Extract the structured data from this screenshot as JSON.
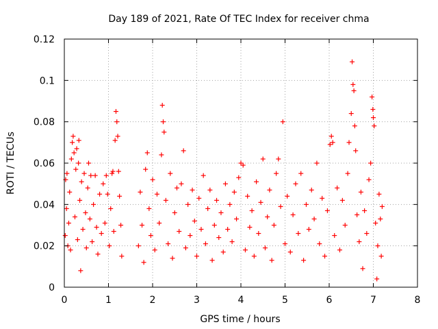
{
  "chart_data": {
    "type": "scatter",
    "title": "Day 189 of 2021, Rate Of TEC Index for receiver chma",
    "xlabel": "GPS time / hours",
    "ylabel": "ROTI / TECUs",
    "xlim": [
      0,
      8
    ],
    "ylim": [
      0,
      0.12
    ],
    "xticks": [
      "0",
      "1",
      "2",
      "3",
      "4",
      "5",
      "6",
      "7",
      "8"
    ],
    "yticks": [
      "0",
      "0.02",
      "0.04",
      "0.06",
      "0.08",
      "0.1",
      "0.12"
    ],
    "grid": true,
    "marker": "+",
    "color": "#ff0000",
    "series": [
      {
        "points": [
          [
            0.02,
            0.025
          ],
          [
            0.03,
            0.052
          ],
          [
            0.05,
            0.038
          ],
          [
            0.06,
            0.055
          ],
          [
            0.08,
            0.02
          ],
          [
            0.1,
            0.031
          ],
          [
            0.12,
            0.046
          ],
          [
            0.14,
            0.018
          ],
          [
            0.16,
            0.062
          ],
          [
            0.18,
            0.07
          ],
          [
            0.2,
            0.073
          ],
          [
            0.22,
            0.065
          ],
          [
            0.24,
            0.034
          ],
          [
            0.26,
            0.057
          ],
          [
            0.28,
            0.067
          ],
          [
            0.3,
            0.023
          ],
          [
            0.32,
            0.06
          ],
          [
            0.33,
            0.071
          ],
          [
            0.35,
            0.042
          ],
          [
            0.37,
            0.008
          ],
          [
            0.39,
            0.051
          ],
          [
            0.42,
            0.028
          ],
          [
            0.45,
            0.055
          ],
          [
            0.48,
            0.036
          ],
          [
            0.5,
            0.019
          ],
          [
            0.53,
            0.048
          ],
          [
            0.55,
            0.06
          ],
          [
            0.58,
            0.033
          ],
          [
            0.6,
            0.054
          ],
          [
            0.63,
            0.022
          ],
          [
            0.66,
            0.04
          ],
          [
            0.7,
            0.054
          ],
          [
            0.73,
            0.029
          ],
          [
            0.76,
            0.016
          ],
          [
            0.8,
            0.045
          ],
          [
            0.84,
            0.026
          ],
          [
            0.88,
            0.05
          ],
          [
            0.92,
            0.031
          ],
          [
            0.95,
            0.054
          ],
          [
            0.98,
            0.045
          ],
          [
            1.02,
            0.02
          ],
          [
            1.05,
            0.038
          ],
          [
            1.08,
            0.055
          ],
          [
            1.1,
            0.056
          ],
          [
            1.12,
            0.027
          ],
          [
            1.15,
            0.071
          ],
          [
            1.17,
            0.085
          ],
          [
            1.19,
            0.08
          ],
          [
            1.21,
            0.073
          ],
          [
            1.23,
            0.056
          ],
          [
            1.25,
            0.044
          ],
          [
            1.28,
            0.03
          ],
          [
            1.3,
            0.015
          ],
          [
            1.68,
            0.02
          ],
          [
            1.72,
            0.046
          ],
          [
            1.76,
            0.03
          ],
          [
            1.8,
            0.012
          ],
          [
            1.84,
            0.057
          ],
          [
            1.88,
            0.065
          ],
          [
            1.92,
            0.038
          ],
          [
            1.96,
            0.025
          ],
          [
            2.0,
            0.052
          ],
          [
            2.05,
            0.018
          ],
          [
            2.1,
            0.045
          ],
          [
            2.15,
            0.031
          ],
          [
            2.2,
            0.064
          ],
          [
            2.22,
            0.088
          ],
          [
            2.24,
            0.08
          ],
          [
            2.26,
            0.075
          ],
          [
            2.3,
            0.042
          ],
          [
            2.35,
            0.021
          ],
          [
            2.4,
            0.055
          ],
          [
            2.45,
            0.014
          ],
          [
            2.5,
            0.036
          ],
          [
            2.55,
            0.048
          ],
          [
            2.6,
            0.027
          ],
          [
            2.65,
            0.05
          ],
          [
            2.7,
            0.066
          ],
          [
            2.75,
            0.019
          ],
          [
            2.8,
            0.04
          ],
          [
            2.85,
            0.025
          ],
          [
            2.9,
            0.047
          ],
          [
            2.95,
            0.032
          ],
          [
            3.0,
            0.015
          ],
          [
            3.05,
            0.043
          ],
          [
            3.1,
            0.028
          ],
          [
            3.15,
            0.054
          ],
          [
            3.2,
            0.021
          ],
          [
            3.25,
            0.038
          ],
          [
            3.3,
            0.047
          ],
          [
            3.35,
            0.013
          ],
          [
            3.4,
            0.03
          ],
          [
            3.45,
            0.042
          ],
          [
            3.5,
            0.024
          ],
          [
            3.55,
            0.036
          ],
          [
            3.6,
            0.017
          ],
          [
            3.65,
            0.05
          ],
          [
            3.7,
            0.028
          ],
          [
            3.75,
            0.04
          ],
          [
            3.8,
            0.022
          ],
          [
            3.85,
            0.046
          ],
          [
            3.9,
            0.033
          ],
          [
            3.95,
            0.053
          ],
          [
            4.0,
            0.06
          ],
          [
            4.05,
            0.059
          ],
          [
            4.1,
            0.018
          ],
          [
            4.15,
            0.044
          ],
          [
            4.2,
            0.029
          ],
          [
            4.25,
            0.037
          ],
          [
            4.3,
            0.015
          ],
          [
            4.35,
            0.051
          ],
          [
            4.4,
            0.026
          ],
          [
            4.45,
            0.041
          ],
          [
            4.5,
            0.062
          ],
          [
            4.55,
            0.019
          ],
          [
            4.6,
            0.034
          ],
          [
            4.65,
            0.047
          ],
          [
            4.7,
            0.013
          ],
          [
            4.75,
            0.03
          ],
          [
            4.8,
            0.055
          ],
          [
            4.85,
            0.062
          ],
          [
            4.9,
            0.039
          ],
          [
            4.95,
            0.08
          ],
          [
            5.0,
            0.021
          ],
          [
            5.05,
            0.044
          ],
          [
            5.12,
            0.017
          ],
          [
            5.18,
            0.035
          ],
          [
            5.24,
            0.05
          ],
          [
            5.3,
            0.026
          ],
          [
            5.36,
            0.055
          ],
          [
            5.42,
            0.013
          ],
          [
            5.48,
            0.04
          ],
          [
            5.54,
            0.028
          ],
          [
            5.6,
            0.047
          ],
          [
            5.66,
            0.033
          ],
          [
            5.72,
            0.06
          ],
          [
            5.78,
            0.021
          ],
          [
            5.84,
            0.043
          ],
          [
            5.9,
            0.015
          ],
          [
            5.96,
            0.037
          ],
          [
            6.02,
            0.069
          ],
          [
            6.05,
            0.073
          ],
          [
            6.08,
            0.07
          ],
          [
            6.12,
            0.025
          ],
          [
            6.18,
            0.048
          ],
          [
            6.24,
            0.018
          ],
          [
            6.3,
            0.042
          ],
          [
            6.36,
            0.03
          ],
          [
            6.42,
            0.055
          ],
          [
            6.45,
            0.07
          ],
          [
            6.5,
            0.084
          ],
          [
            6.52,
            0.109
          ],
          [
            6.54,
            0.098
          ],
          [
            6.56,
            0.095
          ],
          [
            6.58,
            0.078
          ],
          [
            6.6,
            0.066
          ],
          [
            6.63,
            0.035
          ],
          [
            6.68,
            0.022
          ],
          [
            6.72,
            0.046
          ],
          [
            6.76,
            0.009
          ],
          [
            6.8,
            0.037
          ],
          [
            6.85,
            0.026
          ],
          [
            6.9,
            0.052
          ],
          [
            6.94,
            0.06
          ],
          [
            6.97,
            0.092
          ],
          [
            6.99,
            0.086
          ],
          [
            7.0,
            0.082
          ],
          [
            7.02,
            0.078
          ],
          [
            7.05,
            0.031
          ],
          [
            7.08,
            0.004
          ],
          [
            7.1,
            0.02
          ],
          [
            7.13,
            0.045
          ],
          [
            7.16,
            0.033
          ],
          [
            7.18,
            0.015
          ],
          [
            7.2,
            0.039
          ]
        ]
      }
    ]
  }
}
